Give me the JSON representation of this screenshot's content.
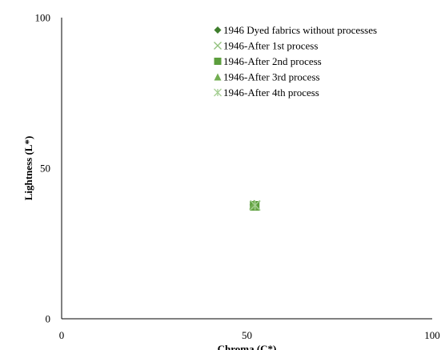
{
  "chart_data": {
    "type": "scatter",
    "title": "",
    "xlabel": "Chroma (C*)",
    "ylabel": "Lightness (L*)",
    "xlim": [
      0,
      100
    ],
    "ylim": [
      0,
      100
    ],
    "xticks": [
      "0",
      "50",
      "100"
    ],
    "yticks": [
      "0",
      "50",
      "100"
    ],
    "grid": false,
    "legend_position": "top-right",
    "series": [
      {
        "name": "1946 Dyed fabrics without processes",
        "marker": "diamond",
        "color": "#3e7d2c",
        "x": [
          52.0
        ],
        "y": [
          37.8
        ]
      },
      {
        "name": "1946-After 1st process",
        "marker": "x",
        "color": "#8fc07a",
        "x": [
          52.3
        ],
        "y": [
          37.6
        ]
      },
      {
        "name": "1946-After 2nd process",
        "marker": "square",
        "color": "#5c9e3d",
        "x": [
          52.1
        ],
        "y": [
          37.5
        ]
      },
      {
        "name": "1946-After 3rd process",
        "marker": "triangle",
        "color": "#72ad50",
        "x": [
          51.9
        ],
        "y": [
          37.9
        ]
      },
      {
        "name": "1946-After 4th process",
        "marker": "star",
        "color": "#a6cf94",
        "x": [
          52.2
        ],
        "y": [
          37.7
        ]
      }
    ]
  }
}
